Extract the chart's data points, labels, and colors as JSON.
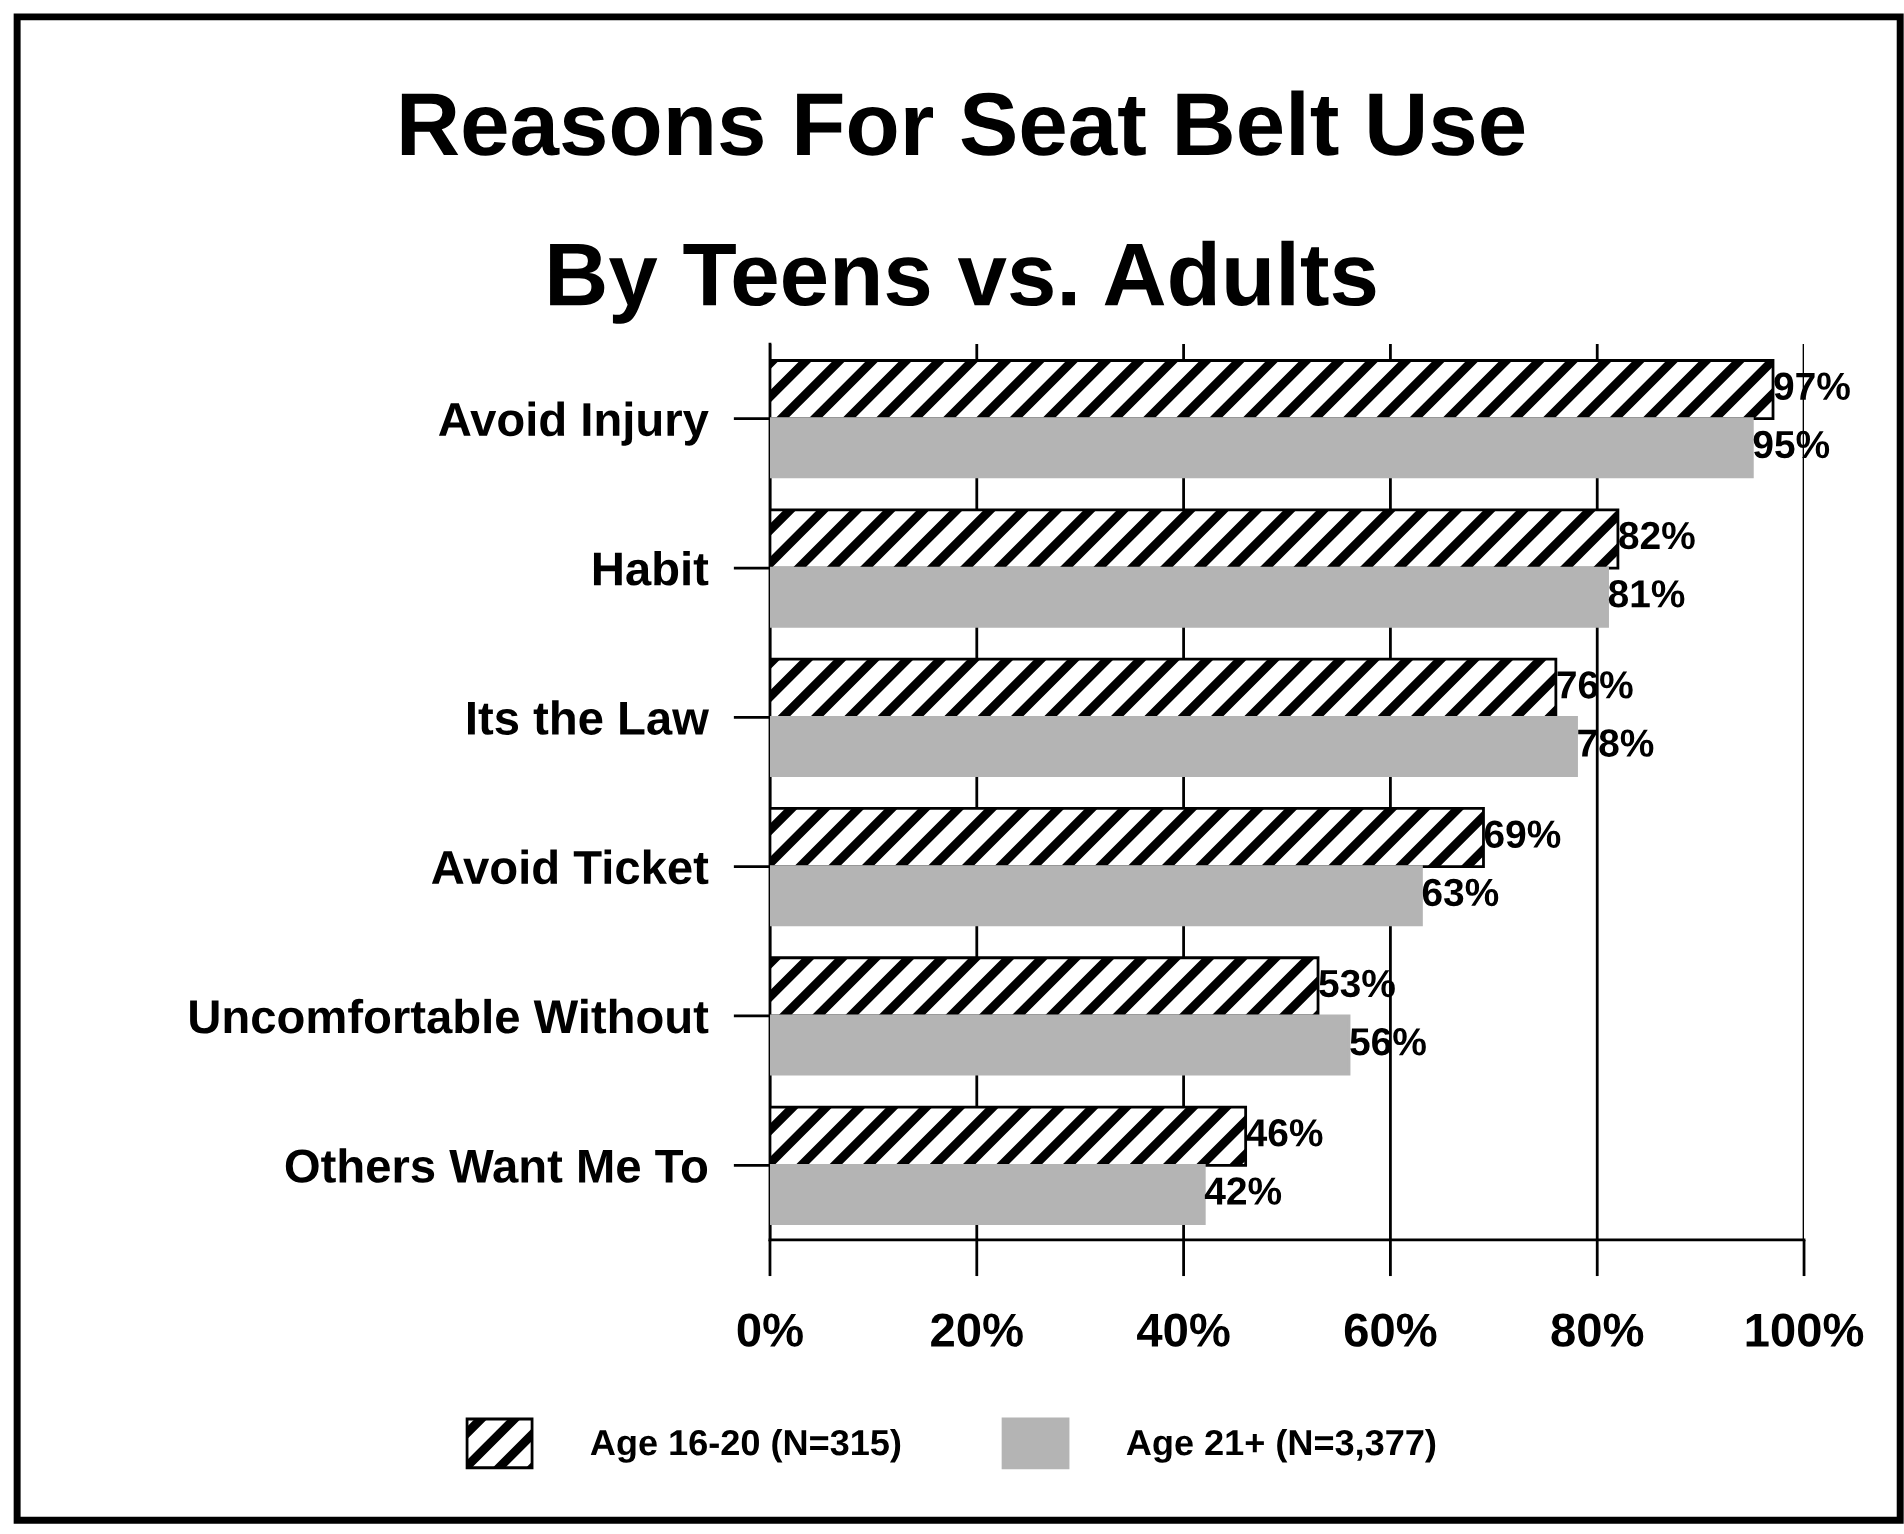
{
  "chart_data": {
    "type": "bar",
    "orientation": "horizontal",
    "title": "Reasons For Seat Belt Use",
    "subtitle": "By Teens vs. Adults",
    "categories": [
      "Avoid Injury",
      "Habit",
      "Its the Law",
      "Avoid Ticket",
      "Uncomfortable Without",
      "Others Want Me To"
    ],
    "series": [
      {
        "name": "Age 16-20 (N=315)",
        "color": "#000000",
        "values": [
          97,
          82,
          76,
          69,
          53,
          46
        ],
        "value_labels": [
          "97%",
          "82%",
          "76%",
          "69%",
          "53%",
          "46%"
        ]
      },
      {
        "name": "Age 21+ (N=3,377)",
        "color": "#b4b4b4",
        "values": [
          95,
          81,
          78,
          63,
          56,
          42
        ],
        "value_labels": [
          "95%",
          "81%",
          "78%",
          "63%",
          "56%",
          "42%"
        ]
      }
    ],
    "xlim": [
      0,
      100
    ],
    "xticks": [
      {
        "value": 0,
        "label": "0%"
      },
      {
        "value": 20,
        "label": "20%"
      },
      {
        "value": 40,
        "label": "40%"
      },
      {
        "value": 60,
        "label": "60%"
      },
      {
        "value": 80,
        "label": "80%"
      },
      {
        "value": 100,
        "label": "100%"
      }
    ],
    "grid": "x",
    "legend": "bottom"
  }
}
